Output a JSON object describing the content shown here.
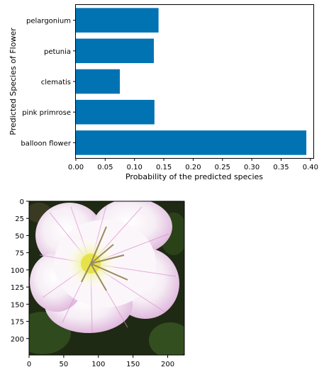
{
  "chart_data": [
    {
      "type": "bar",
      "orientation": "horizontal",
      "categories": [
        "balloon flower",
        "pink primrose",
        "clematis",
        "petunia",
        "pelargonium"
      ],
      "values": [
        0.393,
        0.134,
        0.075,
        0.133,
        0.141
      ],
      "xlabel": "Probability of the predicted species",
      "ylabel": "Predicted Species of Flower",
      "xlim": [
        0.0,
        0.405
      ],
      "xticks": [
        "0.00",
        "0.05",
        "0.10",
        "0.15",
        "0.20",
        "0.25",
        "0.30",
        "0.35",
        "0.40"
      ],
      "bar_color": "#0173b2",
      "grid": false
    },
    {
      "type": "image",
      "content": "pink primrose flower",
      "xlim": [
        0,
        224
      ],
      "ylim": [
        224,
        0
      ],
      "xticks": [
        "0",
        "50",
        "100",
        "150",
        "200"
      ],
      "yticks": [
        "0",
        "25",
        "50",
        "75",
        "100",
        "125",
        "150",
        "175",
        "200"
      ]
    }
  ]
}
